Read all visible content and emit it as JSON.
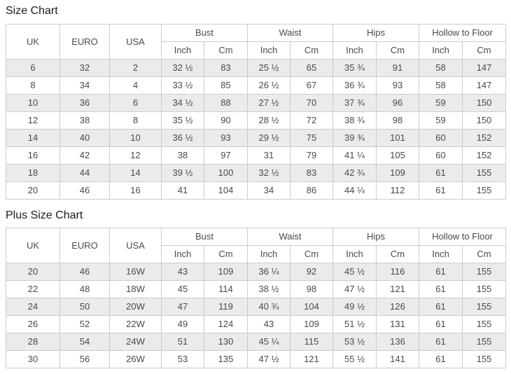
{
  "titles": {
    "size_chart": "Size Chart",
    "plus_size_chart": "Plus Size Chart"
  },
  "header": {
    "uk": "UK",
    "euro": "EURO",
    "usa": "USA",
    "bust": "Bust",
    "waist": "Waist",
    "hips": "Hips",
    "hollow_to_floor": "Hollow to Floor",
    "inch": "Inch",
    "cm": "Cm"
  },
  "tables": [
    {
      "name": "size_chart",
      "rows": [
        [
          "6",
          "32",
          "2",
          "32 ½",
          "83",
          "25 ½",
          "65",
          "35 ¾",
          "91",
          "58",
          "147"
        ],
        [
          "8",
          "34",
          "4",
          "33 ½",
          "85",
          "26 ½",
          "67",
          "36 ¾",
          "93",
          "58",
          "147"
        ],
        [
          "10",
          "36",
          "6",
          "34 ½",
          "88",
          "27 ½",
          "70",
          "37 ¾",
          "96",
          "59",
          "150"
        ],
        [
          "12",
          "38",
          "8",
          "35 ½",
          "90",
          "28 ½",
          "72",
          "38 ¾",
          "98",
          "59",
          "150"
        ],
        [
          "14",
          "40",
          "10",
          "36 ½",
          "93",
          "29 ½",
          "75",
          "39 ¾",
          "101",
          "60",
          "152"
        ],
        [
          "16",
          "42",
          "12",
          "38",
          "97",
          "31",
          "79",
          "41 ¼",
          "105",
          "60",
          "152"
        ],
        [
          "18",
          "44",
          "14",
          "39 ½",
          "100",
          "32 ½",
          "83",
          "42 ¾",
          "109",
          "61",
          "155"
        ],
        [
          "20",
          "46",
          "16",
          "41",
          "104",
          "34",
          "86",
          "44 ¼",
          "112",
          "61",
          "155"
        ]
      ]
    },
    {
      "name": "plus_size_chart",
      "rows": [
        [
          "20",
          "46",
          "16W",
          "43",
          "109",
          "36 ¼",
          "92",
          "45 ½",
          "116",
          "61",
          "155"
        ],
        [
          "22",
          "48",
          "18W",
          "45",
          "114",
          "38 ½",
          "98",
          "47 ½",
          "121",
          "61",
          "155"
        ],
        [
          "24",
          "50",
          "20W",
          "47",
          "119",
          "40 ¾",
          "104",
          "49 ½",
          "126",
          "61",
          "155"
        ],
        [
          "26",
          "52",
          "22W",
          "49",
          "124",
          "43",
          "109",
          "51 ½",
          "131",
          "61",
          "155"
        ],
        [
          "28",
          "54",
          "24W",
          "51",
          "130",
          "45 ¼",
          "115",
          "53 ½",
          "136",
          "61",
          "155"
        ],
        [
          "30",
          "56",
          "26W",
          "53",
          "135",
          "47 ½",
          "121",
          "55 ½",
          "141",
          "61",
          "155"
        ]
      ]
    }
  ],
  "colors": {
    "row_stripe": "#ebebeb",
    "table_border": "#cccccc",
    "text": "#4a4a4a",
    "title_text": "#1c1c1c",
    "background": "#ffffff"
  }
}
